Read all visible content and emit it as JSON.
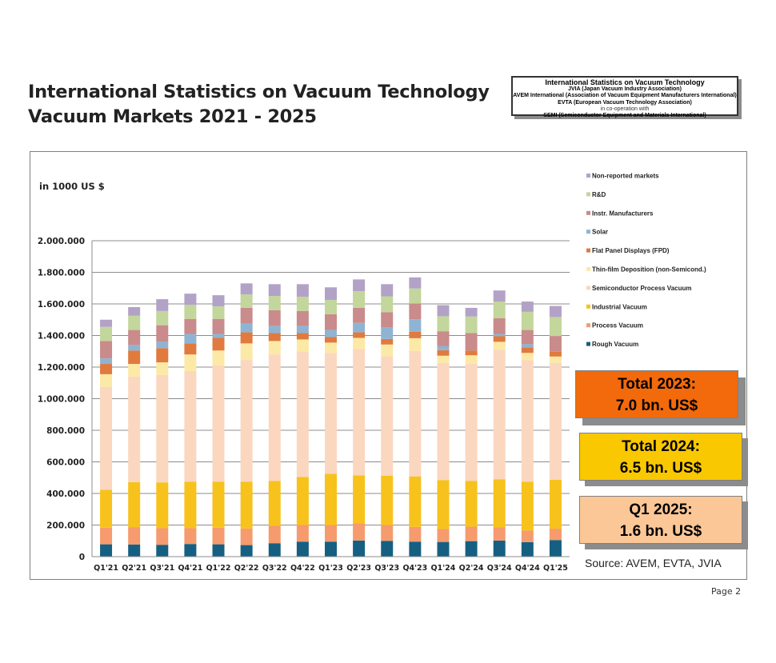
{
  "page": {
    "title_line1": "International Statistics on Vacuum Technology",
    "title_line2": "Vacuum Markets 2021 - 2025",
    "org_box": {
      "line1": "International Statistics on Vacuum Technology",
      "line2": "JVIA (Japan Vacuum Industry Association)",
      "line3": "AVEM International (Association of Vacuum Equipment Manufacturers International)",
      "line4": "EVTA (European Vacuum Technology Association)",
      "line5": "in co-operation with",
      "line6": "SEMI (Semiconductor Equipment and Materials International)"
    },
    "unit_label": "in 1000 US $",
    "totals": [
      {
        "line1": "Total 2023:",
        "line2": "7.0 bn. US$",
        "color": "#f26a0b"
      },
      {
        "line1": "Total 2024:",
        "line2": "6.5 bn. US$",
        "color": "#fac800"
      },
      {
        "line1": "Q1 2025:",
        "line2": "1.6 bn. US$",
        "color": "#fcc797"
      }
    ],
    "source": "Source: AVEM, EVTA, JVIA",
    "page_number": "Page 2"
  },
  "chart_data": {
    "type": "bar",
    "stacked": true,
    "title": "",
    "xlabel": "",
    "ylabel": "in 1000 US $",
    "ylim": [
      0,
      2000000
    ],
    "yticks": [
      0,
      200000,
      400000,
      600000,
      800000,
      1000000,
      1200000,
      1400000,
      1600000,
      1800000,
      2000000
    ],
    "ytick_labels": [
      "0",
      "200.000",
      "400.000",
      "600.000",
      "800.000",
      "1.000.000",
      "1.200.000",
      "1.400.000",
      "1.600.000",
      "1.800.000",
      "2.000.000"
    ],
    "grid": true,
    "legend_position": "right",
    "categories": [
      "Q1'21",
      "Q2'21",
      "Q3'21",
      "Q4'21",
      "Q1'22",
      "Q2'22",
      "Q3'22",
      "Q4'22",
      "Q1'23",
      "Q2'23",
      "Q3'23",
      "Q4'23",
      "Q1'24",
      "Q2'24",
      "Q3'24",
      "Q4'24",
      "Q1'25"
    ],
    "series": [
      {
        "name": "Rough Vacuum",
        "color": "#156082",
        "values": [
          78000,
          77000,
          75000,
          80000,
          78000,
          73000,
          85000,
          95000,
          95000,
          102000,
          100000,
          95000,
          93000,
          98000,
          102000,
          92000,
          105000
        ]
      },
      {
        "name": "Process Vacuum",
        "color": "#f59b6e",
        "values": [
          105000,
          110000,
          105000,
          100000,
          105000,
          105000,
          110000,
          105000,
          105000,
          110000,
          100000,
          93000,
          82000,
          92000,
          83000,
          73000,
          72000
        ]
      },
      {
        "name": "Industrial Vacuum",
        "color": "#f8c21c",
        "values": [
          240000,
          285000,
          290000,
          295000,
          292000,
          297000,
          285000,
          305000,
          325000,
          303000,
          313000,
          320000,
          310000,
          290000,
          305000,
          310000,
          310000
        ]
      },
      {
        "name": "Semiconductor Process Vacuum",
        "color": "#fbd7c0",
        "values": [
          652000,
          668000,
          680000,
          700000,
          735000,
          770000,
          800000,
          795000,
          765000,
          800000,
          755000,
          795000,
          742000,
          740000,
          820000,
          770000,
          740000
        ]
      },
      {
        "name": "Thin-film Deposition (non-Semicond.)",
        "color": "#fde9a6",
        "values": [
          80000,
          80000,
          80000,
          105000,
          95000,
          105000,
          85000,
          75000,
          65000,
          70000,
          75000,
          80000,
          45000,
          55000,
          50000,
          45000,
          40000
        ]
      },
      {
        "name": "Flat Panel Displays (FPD)",
        "color": "#e07a3e",
        "values": [
          65000,
          85000,
          90000,
          70000,
          80000,
          70000,
          50000,
          40000,
          35000,
          35000,
          35000,
          40000,
          35000,
          30000,
          35000,
          35000,
          30000
        ]
      },
      {
        "name": "Solar",
        "color": "#8fb4d3",
        "values": [
          35000,
          35000,
          40000,
          60000,
          25000,
          55000,
          45000,
          45000,
          45000,
          60000,
          75000,
          80000,
          25000,
          0,
          15000,
          20000,
          0
        ]
      },
      {
        "name": "Instr. Manufacturers",
        "color": "#c98b8b",
        "values": [
          110000,
          95000,
          105000,
          95000,
          95000,
          100000,
          100000,
          95000,
          100000,
          95000,
          95000,
          100000,
          95000,
          110000,
          100000,
          90000,
          100000
        ]
      },
      {
        "name": "R&D",
        "color": "#c3d69b",
        "values": [
          90000,
          90000,
          90000,
          90000,
          80000,
          85000,
          90000,
          90000,
          90000,
          105000,
          100000,
          95000,
          95000,
          105000,
          105000,
          115000,
          120000
        ]
      },
      {
        "name": "Non-reported markets",
        "color": "#b3a2c7",
        "values": [
          45000,
          55000,
          75000,
          70000,
          70000,
          70000,
          75000,
          80000,
          80000,
          75000,
          77000,
          70000,
          70000,
          55000,
          70000,
          65000,
          70000
        ]
      }
    ]
  }
}
